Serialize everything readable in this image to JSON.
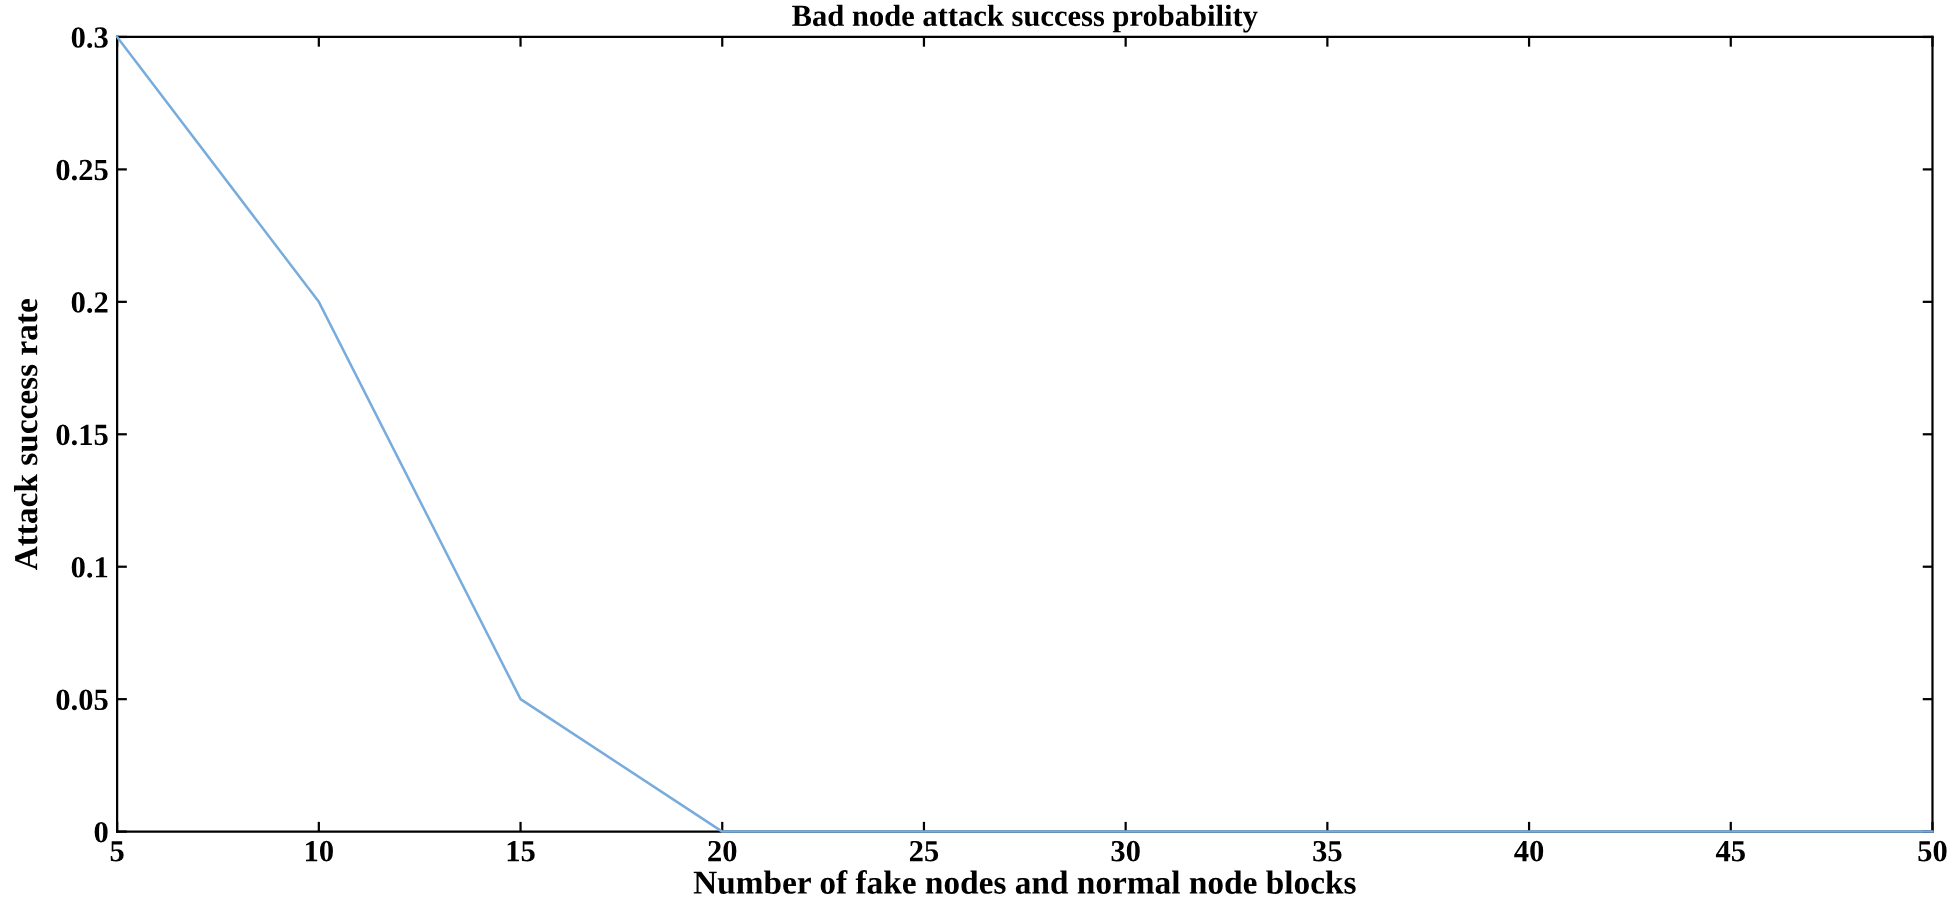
{
  "chart_data": {
    "type": "line",
    "title": "Bad node attack success probability",
    "xlabel": "Number of fake nodes and normal node blocks",
    "ylabel": "Attack success rate",
    "x": [
      5,
      10,
      15,
      20,
      25,
      30,
      35,
      40,
      45,
      50
    ],
    "series": [
      {
        "color": "#77acdc",
        "values": [
          0.3,
          0.2,
          0.05,
          0,
          0,
          0,
          0,
          0,
          0,
          0
        ]
      }
    ],
    "xlim": [
      5,
      50
    ],
    "xticks": [
      5,
      10,
      15,
      20,
      25,
      30,
      35,
      40,
      45,
      50
    ],
    "ylim": [
      0,
      0.3
    ],
    "yticks": [
      0,
      0.05,
      0.1,
      0.15,
      0.2,
      0.25,
      0.3
    ],
    "grid": false,
    "marker": "none",
    "line_style": "solid"
  }
}
